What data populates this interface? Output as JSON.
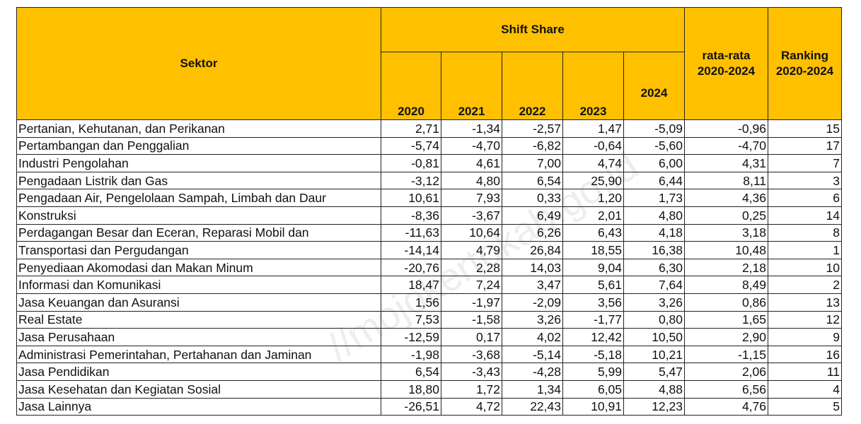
{
  "header": {
    "sektor": "Sektor",
    "shift_share": "Shift Share",
    "years": [
      "2020",
      "2021",
      "2022",
      "2023",
      "2024"
    ],
    "avg_line1": "rata-rata",
    "avg_line2": "2020-2024",
    "rank_line1": "Ranking",
    "rank_line2": "2020-2024"
  },
  "rows": [
    {
      "sector": "Pertanian, Kehutanan, dan Perikanan",
      "values": [
        "2,71",
        "-1,34",
        "-2,57",
        "1,47",
        "-5,09"
      ],
      "avg": "-0,96",
      "rank": "15"
    },
    {
      "sector": "Pertambangan dan Penggalian",
      "values": [
        "-5,74",
        "-4,70",
        "-6,82",
        "-0,64",
        "-5,60"
      ],
      "avg": "-4,70",
      "rank": "17"
    },
    {
      "sector": "Industri Pengolahan",
      "values": [
        "-0,81",
        "4,61",
        "7,00",
        "4,74",
        "6,00"
      ],
      "avg": "4,31",
      "rank": "7"
    },
    {
      "sector": "Pengadaan Listrik dan Gas",
      "values": [
        "-3,12",
        "4,80",
        "6,54",
        "25,90",
        "6,44"
      ],
      "avg": "8,11",
      "rank": "3"
    },
    {
      "sector": "Pengadaan Air, Pengelolaan Sampah, Limbah dan Daur",
      "values": [
        "10,61",
        "7,93",
        "0,33",
        "1,20",
        "1,73"
      ],
      "avg": "4,36",
      "rank": "6"
    },
    {
      "sector": "Konstruksi",
      "values": [
        "-8,36",
        "-3,67",
        "6,49",
        "2,01",
        "4,80"
      ],
      "avg": "0,25",
      "rank": "14"
    },
    {
      "sector": "Perdagangan Besar dan Eceran, Reparasi Mobil dan",
      "values": [
        "-11,63",
        "10,64",
        "6,26",
        "6,43",
        "4,18"
      ],
      "avg": "3,18",
      "rank": "8"
    },
    {
      "sector": "Transportasi dan Pergudangan",
      "values": [
        "-14,14",
        "4,79",
        "26,84",
        "18,55",
        "16,38"
      ],
      "avg": "10,48",
      "rank": "1"
    },
    {
      "sector": "Penyediaan Akomodasi dan Makan Minum",
      "values": [
        "-20,76",
        "2,28",
        "14,03",
        "9,04",
        "6,30"
      ],
      "avg": "2,18",
      "rank": "10"
    },
    {
      "sector": "Informasi dan Komunikasi",
      "values": [
        "18,47",
        "7,24",
        "3,47",
        "5,61",
        "7,64"
      ],
      "avg": "8,49",
      "rank": "2"
    },
    {
      "sector": "Jasa Keuangan dan Asuransi",
      "values": [
        "1,56",
        "-1,97",
        "-2,09",
        "3,56",
        "3,26"
      ],
      "avg": "0,86",
      "rank": "13"
    },
    {
      "sector": "Real Estate",
      "values": [
        "7,53",
        "-1,58",
        "3,26",
        "-1,77",
        "0,80"
      ],
      "avg": "1,65",
      "rank": "12"
    },
    {
      "sector": "Jasa Perusahaan",
      "values": [
        "-12,59",
        "0,17",
        "4,02",
        "12,42",
        "10,50"
      ],
      "avg": "2,90",
      "rank": "9"
    },
    {
      "sector": "Administrasi Pemerintahan, Pertahanan dan Jaminan",
      "values": [
        "-1,98",
        "-3,68",
        "-5,14",
        "-5,18",
        "10,21"
      ],
      "avg": "-1,15",
      "rank": "16"
    },
    {
      "sector": "Jasa Pendidikan",
      "values": [
        "6,54",
        "-3,43",
        "-4,28",
        "5,99",
        "5,47"
      ],
      "avg": "2,06",
      "rank": "11"
    },
    {
      "sector": "Jasa Kesehatan dan Kegiatan Sosial",
      "values": [
        "18,80",
        "1,72",
        "1,34",
        "6,05",
        "4,88"
      ],
      "avg": "6,56",
      "rank": "4"
    },
    {
      "sector": "Jasa Lainnya",
      "values": [
        "-26,51",
        "4,72",
        "22,43",
        "10,91",
        "12,23"
      ],
      "avg": "4,76",
      "rank": "5"
    }
  ],
  "watermark": "//mojokertokab.go.id",
  "colors": {
    "header_bg": "#ffc000",
    "border": "#222222"
  }
}
